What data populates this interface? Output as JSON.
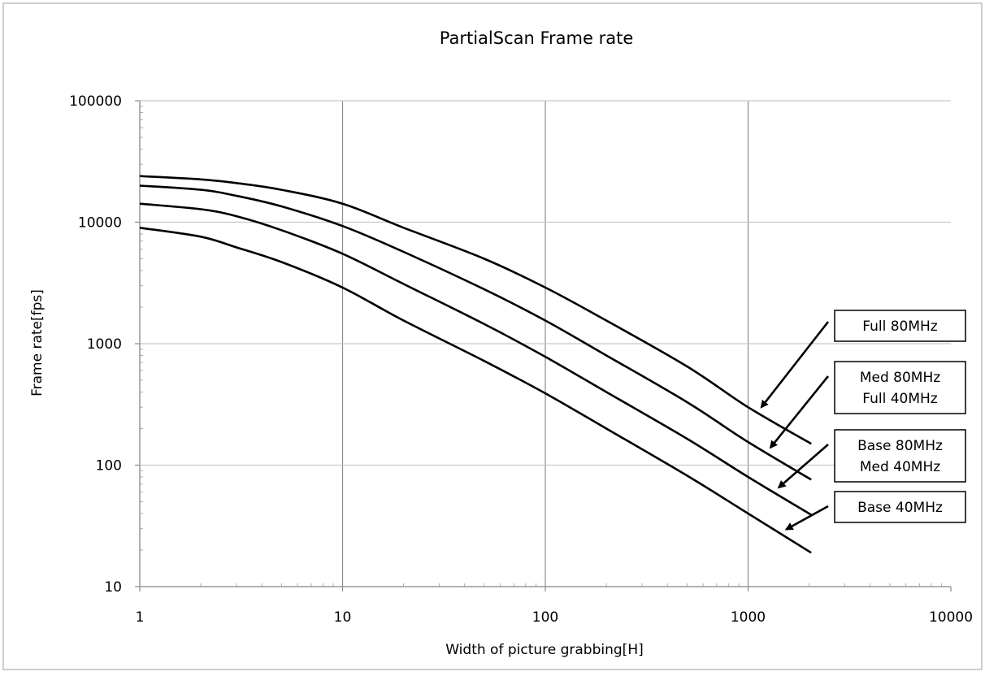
{
  "chart_data": {
    "type": "line",
    "title": "PartialScan Frame rate",
    "xlabel": "Width of picture grabbing[H]",
    "ylabel": "Frame rate[fps]",
    "x_scale": "log",
    "y_scale": "log",
    "xlim": [
      1,
      10000
    ],
    "ylim": [
      10,
      100000
    ],
    "x_ticks": [
      "1",
      "10",
      "100",
      "1000",
      "10000"
    ],
    "y_ticks": [
      "10",
      "100",
      "1000",
      "10000",
      "100000"
    ],
    "grid": true,
    "legend": "callouts-right",
    "line_color": "#000000",
    "series": [
      {
        "name": "Full 80MHz",
        "x": [
          1,
          2,
          3,
          5,
          10,
          20,
          50,
          100,
          200,
          500,
          1000,
          2048
        ],
        "y": [
          24000,
          22500,
          21000,
          18500,
          14200,
          9000,
          5000,
          2900,
          1550,
          650,
          300,
          150
        ]
      },
      {
        "name": "Med 80MHz / Full 40MHz",
        "x": [
          1,
          2,
          3,
          5,
          10,
          20,
          50,
          100,
          200,
          500,
          1000,
          2048
        ],
        "y": [
          20000,
          18500,
          16500,
          13500,
          9300,
          5700,
          2800,
          1550,
          800,
          330,
          155,
          76
        ]
      },
      {
        "name": "Base 80MHz / Med 40MHz",
        "x": [
          1,
          2,
          3,
          5,
          10,
          20,
          50,
          100,
          200,
          500,
          1000,
          2048
        ],
        "y": [
          14200,
          12800,
          11200,
          8600,
          5500,
          3100,
          1450,
          780,
          400,
          165,
          80,
          39
        ]
      },
      {
        "name": "Base 40MHz",
        "x": [
          1,
          2,
          3,
          5,
          10,
          20,
          50,
          100,
          200,
          500,
          1000,
          2048
        ],
        "y": [
          9000,
          7600,
          6200,
          4700,
          2900,
          1550,
          720,
          390,
          200,
          82,
          40,
          19
        ]
      }
    ],
    "callouts": [
      {
        "lines": [
          "Full 80MHz"
        ],
        "series": 0
      },
      {
        "lines": [
          "Med 80MHz",
          "Full 40MHz"
        ],
        "series": 1
      },
      {
        "lines": [
          "Base 80MHz",
          "Med 40MHz"
        ],
        "series": 2
      },
      {
        "lines": [
          "Base 40MHz"
        ],
        "series": 3
      }
    ]
  }
}
